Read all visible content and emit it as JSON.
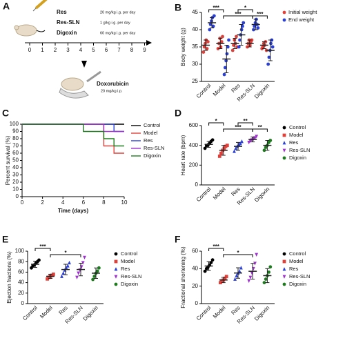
{
  "schematic": {
    "panel": "A",
    "treatments": [
      {
        "name": "Res",
        "dose": "20 mg/kg i.g. per day"
      },
      {
        "name": "Res-SLN",
        "dose": "1 g/kg i.g. per day"
      },
      {
        "name": "Digoxin",
        "dose": "60 mg/kg i.g. per day"
      }
    ],
    "timeline": [
      0,
      1,
      2,
      3,
      4,
      5,
      6,
      7,
      8,
      9
    ],
    "injection": {
      "drug": "Doxorubicin",
      "dose": "20 mg/kg i.p."
    }
  },
  "chart_data": [
    {
      "type": "dot",
      "panel": "B",
      "y_label": "Body weight (g)",
      "categories": [
        "Control",
        "Model",
        "Res",
        "Res-SLN",
        "Digoxin"
      ],
      "ylim": [
        25,
        45
      ],
      "yticks": [
        25,
        30,
        35,
        40,
        45
      ],
      "legend": "upper right",
      "series": [
        {
          "name": "Initial weight",
          "color": "#e0403a",
          "values": [
            35.5,
            36,
            36,
            36,
            35.5
          ],
          "errors": [
            1.5,
            1.5,
            1.5,
            1,
            1
          ],
          "points": [
            [
              33.5,
              35,
              36,
              37,
              34.5,
              36.5
            ],
            [
              34.5,
              36,
              37.5,
              35,
              36.5,
              38
            ],
            [
              34,
              35.5,
              37,
              36,
              38,
              35
            ],
            [
              35,
              36,
              37,
              35.5,
              36.5,
              37
            ],
            [
              34.5,
              35,
              36,
              35.5,
              36.5,
              34
            ]
          ]
        },
        {
          "name": "End weight",
          "color": "#2a3fd6",
          "values": [
            42,
            31.5,
            38.5,
            41.5,
            34
          ],
          "errors": [
            1.5,
            4,
            3,
            1.5,
            3
          ],
          "points": [
            [
              40,
              41.5,
              42.5,
              43.5,
              41,
              44
            ],
            [
              27,
              29,
              31,
              33,
              35,
              37
            ],
            [
              35,
              37,
              38.5,
              40,
              41,
              42
            ],
            [
              40,
              41,
              42,
              43,
              41.5,
              40.5
            ],
            [
              30,
              32,
              34,
              36,
              37,
              35
            ]
          ]
        }
      ],
      "significance": [
        {
          "between": [
            "Control",
            "Model"
          ],
          "label": "***"
        },
        {
          "between": [
            "Model",
            "Res-SLN"
          ],
          "label": "***"
        },
        {
          "between": [
            "Res",
            "Res-SLN"
          ],
          "label": "*"
        },
        {
          "between": [
            "Res-SLN",
            "Digoxin"
          ],
          "label": "***"
        }
      ]
    },
    {
      "type": "survival",
      "panel": "C",
      "y_label": "Percent survival (%)",
      "x_label": "Time (days)",
      "xlim": [
        0,
        10
      ],
      "xticks": [
        0,
        2,
        4,
        6,
        8,
        10
      ],
      "ylim": [
        0,
        100
      ],
      "yticks": [
        0,
        10,
        20,
        30,
        40,
        50,
        60,
        70,
        80,
        90,
        100
      ],
      "legend": "right",
      "series": [
        {
          "name": "Control",
          "color": "#000000",
          "x": [
            0,
            10
          ],
          "values": [
            100,
            100
          ]
        },
        {
          "name": "Model",
          "color": "#e0403a",
          "x": [
            0,
            8,
            9,
            10
          ],
          "values": [
            100,
            70,
            60,
            60
          ]
        },
        {
          "name": "Res",
          "color": "#2a3fd6",
          "x": [
            0,
            9,
            10
          ],
          "values": [
            100,
            90,
            90
          ]
        },
        {
          "name": "Res-SLN",
          "color": "#a030d0",
          "x": [
            0,
            8,
            10
          ],
          "values": [
            100,
            90,
            90
          ]
        },
        {
          "name": "Digoxin",
          "color": "#1e7a1e",
          "x": [
            0,
            6,
            8,
            9,
            10
          ],
          "values": [
            100,
            90,
            80,
            70,
            70
          ]
        }
      ]
    },
    {
      "type": "dot",
      "panel": "D",
      "y_label": "Heart rate (bpm)",
      "categories": [
        "Control",
        "Model",
        "Res",
        "Res-SLN",
        "Digoxin"
      ],
      "ylim": [
        0,
        600
      ],
      "yticks": [
        0,
        200,
        400,
        600
      ],
      "legend": "right",
      "groups": [
        {
          "color": "#000000",
          "marker": "circle",
          "mean": 410,
          "sd": 30,
          "points": [
            370,
            395,
            405,
            420,
            440,
            455
          ]
        },
        {
          "color": "#e0403a",
          "marker": "square",
          "mean": 350,
          "sd": 50,
          "points": [
            290,
            320,
            350,
            370,
            390,
            400
          ]
        },
        {
          "color": "#2a3fd6",
          "marker": "triangle-up",
          "mean": 390,
          "sd": 40,
          "points": [
            340,
            370,
            390,
            410,
            420,
            440
          ]
        },
        {
          "color": "#a030d0",
          "marker": "triangle-down",
          "mean": 460,
          "sd": 25,
          "points": [
            430,
            445,
            455,
            465,
            475,
            490
          ]
        },
        {
          "color": "#1e7a1e",
          "marker": "circle",
          "mean": 400,
          "sd": 50,
          "points": [
            350,
            380,
            400,
            430,
            450
          ]
        }
      ],
      "significance": [
        {
          "between": [
            "Control",
            "Model"
          ],
          "label": "*"
        },
        {
          "between": [
            "Model",
            "Res-SLN"
          ],
          "label": "***"
        },
        {
          "between": [
            "Res",
            "Res-SLN"
          ],
          "label": "**"
        },
        {
          "between": [
            "Res-SLN",
            "Digoxin"
          ],
          "label": "**"
        }
      ]
    },
    {
      "type": "dot",
      "panel": "E",
      "y_label": "Ejection fractions (%)",
      "categories": [
        "Control",
        "Model",
        "Res",
        "Res-SLN",
        "Digoxin"
      ],
      "ylim": [
        0,
        100
      ],
      "yticks": [
        0,
        20,
        40,
        60,
        80,
        100
      ],
      "legend": "right",
      "groups": [
        {
          "color": "#000000",
          "marker": "circle",
          "mean": 75,
          "sd": 6,
          "points": [
            68,
            72,
            74,
            77,
            80,
            83
          ]
        },
        {
          "color": "#e0403a",
          "marker": "square",
          "mean": 52,
          "sd": 4,
          "points": [
            47,
            50,
            52,
            54,
            56
          ]
        },
        {
          "color": "#2a3fd6",
          "marker": "triangle-up",
          "mean": 65,
          "sd": 10,
          "points": [
            52,
            58,
            64,
            68,
            72,
            78
          ]
        },
        {
          "color": "#a030d0",
          "marker": "triangle-down",
          "mean": 65,
          "sd": 12,
          "points": [
            50,
            58,
            64,
            70,
            78,
            88
          ]
        },
        {
          "color": "#1e7a1e",
          "marker": "circle",
          "mean": 58,
          "sd": 10,
          "points": [
            46,
            52,
            58,
            62,
            68
          ]
        }
      ],
      "significance": [
        {
          "between": [
            "Control",
            "Model"
          ],
          "label": "***"
        },
        {
          "between": [
            "Model",
            "Res-SLN"
          ],
          "label": "*"
        }
      ]
    },
    {
      "type": "dot",
      "panel": "F",
      "y_label": "Fractional shortening (%)",
      "categories": [
        "Control",
        "Model",
        "Res",
        "Res-SLN",
        "Digoxin"
      ],
      "ylim": [
        0,
        60
      ],
      "yticks": [
        0,
        20,
        40,
        60
      ],
      "legend": "right",
      "groups": [
        {
          "color": "#000000",
          "marker": "circle",
          "mean": 43,
          "sd": 5,
          "points": [
            37,
            40,
            42,
            44,
            47,
            50
          ]
        },
        {
          "color": "#e0403a",
          "marker": "square",
          "mean": 27,
          "sd": 3,
          "points": [
            24,
            26,
            27,
            29,
            31
          ]
        },
        {
          "color": "#2a3fd6",
          "marker": "triangle-up",
          "mean": 35,
          "sd": 6,
          "points": [
            28,
            32,
            35,
            37,
            41
          ]
        },
        {
          "color": "#a030d0",
          "marker": "triangle-down",
          "mean": 37,
          "sd": 9,
          "points": [
            26,
            30,
            35,
            40,
            46,
            56
          ]
        },
        {
          "color": "#1e7a1e",
          "marker": "circle",
          "mean": 32,
          "sd": 8,
          "points": [
            24,
            28,
            32,
            36,
            42
          ]
        }
      ],
      "significance": [
        {
          "between": [
            "Control",
            "Model"
          ],
          "label": "***"
        },
        {
          "between": [
            "Model",
            "Res-SLN"
          ],
          "label": "*"
        }
      ]
    }
  ]
}
